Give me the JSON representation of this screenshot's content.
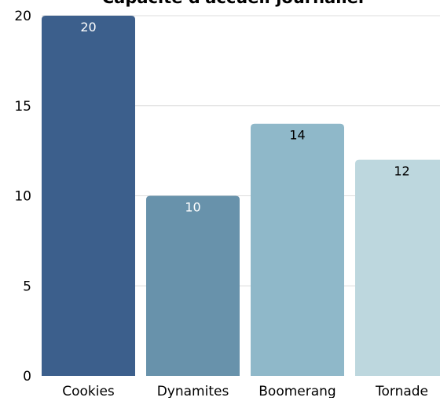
{
  "chart_data": {
    "type": "bar",
    "title": "Capacité d'accueil journalier",
    "xlabel": "",
    "ylabel": "",
    "categories": [
      "Cookies",
      "Dynamites",
      "Boomerang",
      "Tornade"
    ],
    "values": [
      20,
      10,
      14,
      12
    ],
    "ylim": [
      0,
      20
    ],
    "yticks": [
      0,
      5,
      10,
      15,
      20
    ],
    "grid": true,
    "legend": "none",
    "bar_colors": [
      "#3c5f8c",
      "#6892ab",
      "#8fb8c9",
      "#bdd7de"
    ],
    "label_colors": [
      "#ffffff",
      "#ffffff",
      "#000000",
      "#000000"
    ]
  }
}
